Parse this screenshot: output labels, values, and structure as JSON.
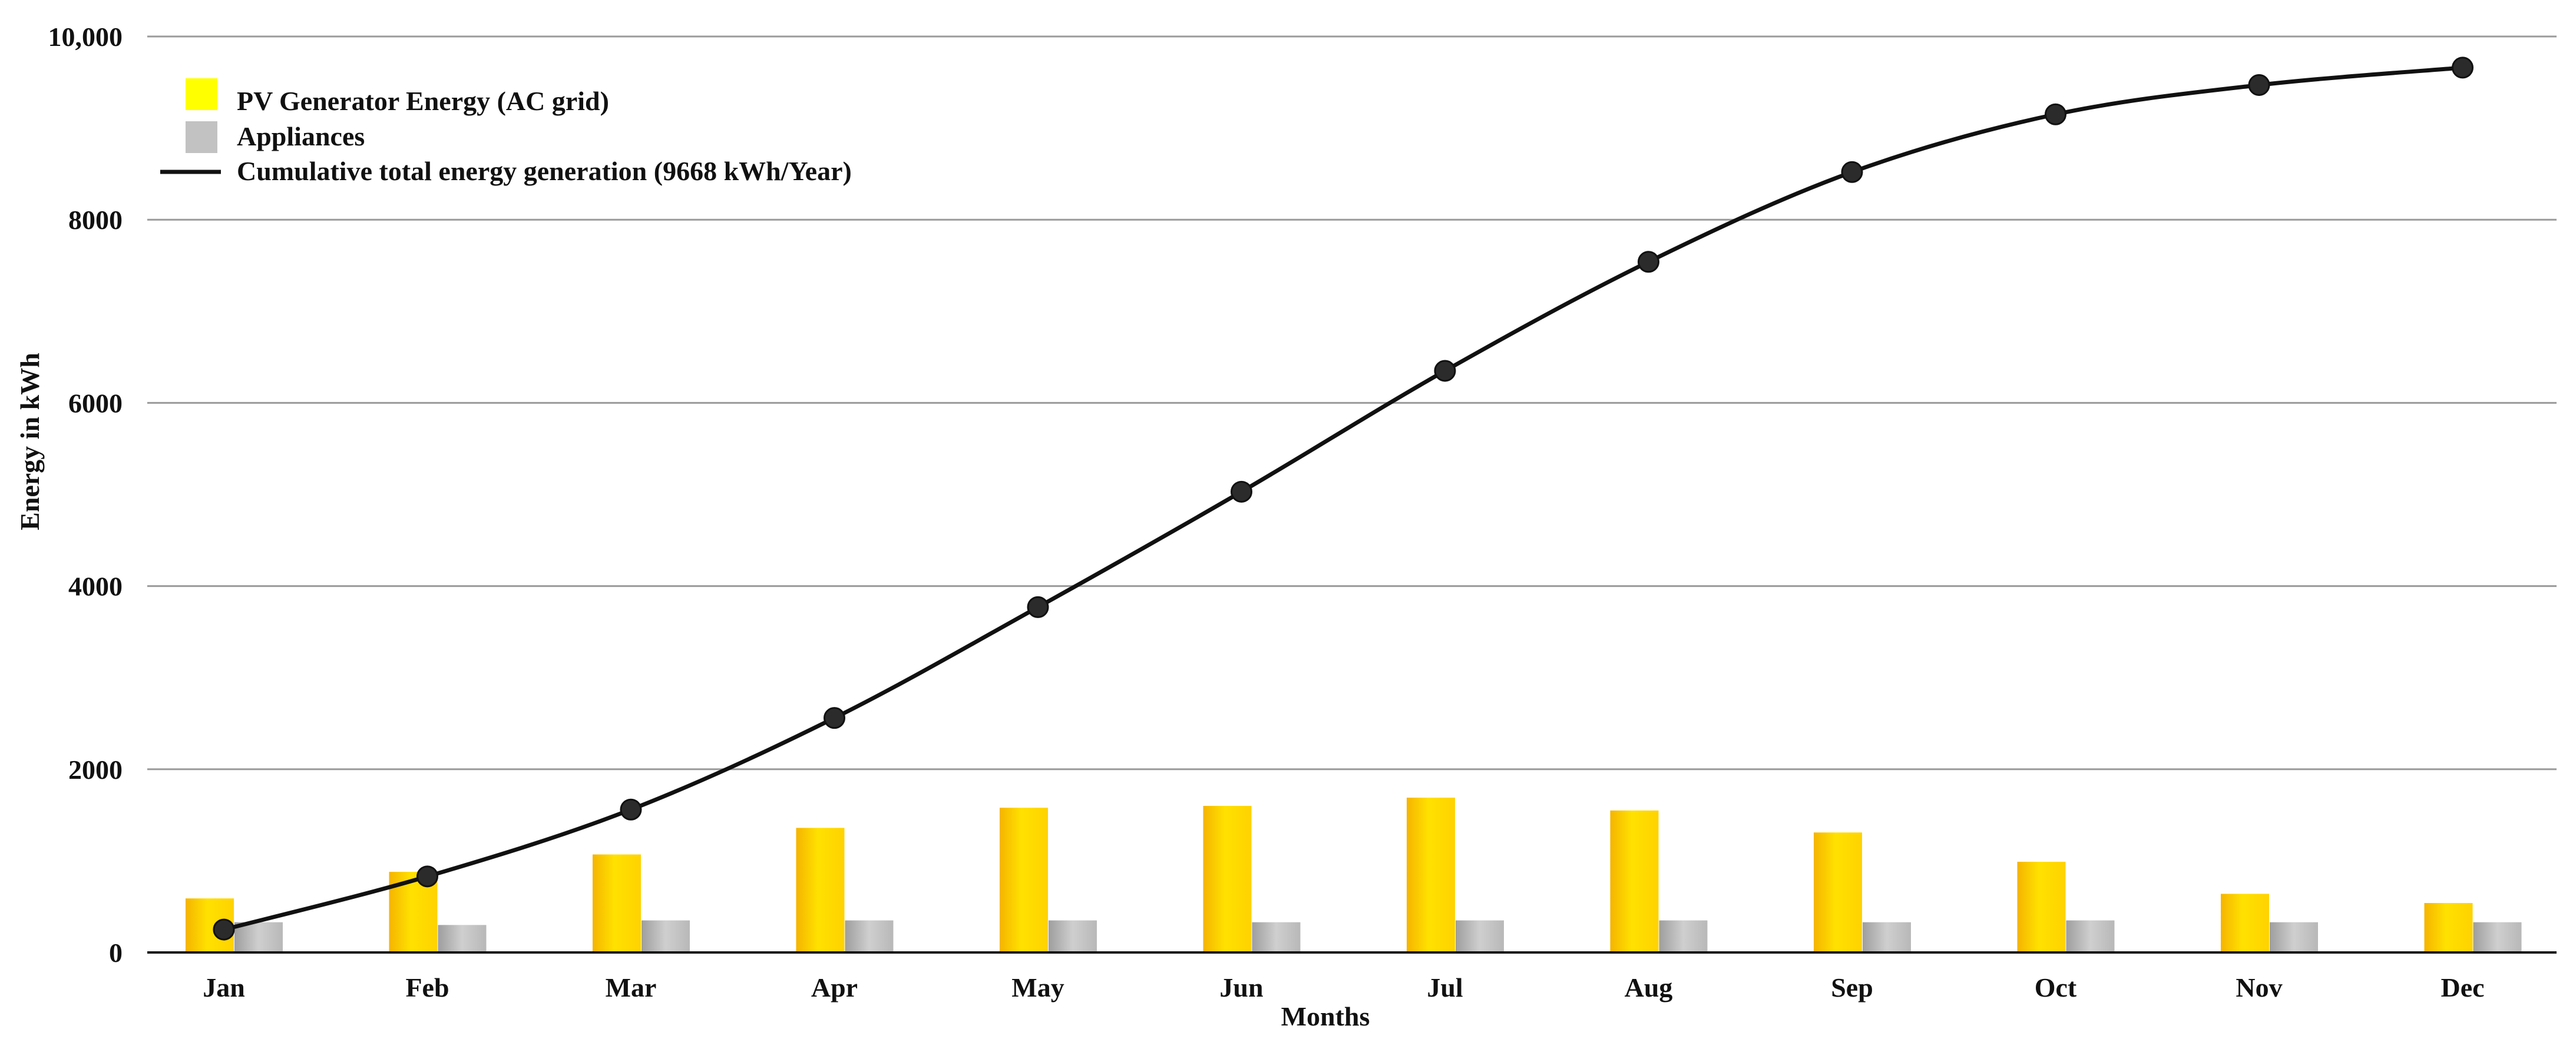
{
  "chart_data": {
    "type": "bar",
    "title": "",
    "xlabel": "Months",
    "ylabel": "Energy in kWh",
    "ylim": [
      0,
      10000
    ],
    "yticks": [
      {
        "value": 0,
        "label": "0"
      },
      {
        "value": 2000,
        "label": "2000"
      },
      {
        "value": 4000,
        "label": "4000"
      },
      {
        "value": 6000,
        "label": "6000"
      },
      {
        "value": 8000,
        "label": "8000"
      },
      {
        "value": 10000,
        "label": "10,000"
      }
    ],
    "grid": true,
    "legend_position": "top-left",
    "categories": [
      "Jan",
      "Feb",
      "Mar",
      "Apr",
      "May",
      "Jun",
      "Jul",
      "Aug",
      "Sep",
      "Oct",
      "Nov",
      "Dec"
    ],
    "series": [
      {
        "name": "PV Generator Energy (AC grid)",
        "type": "bar",
        "color": "#ffd800",
        "values": [
          590,
          880,
          1070,
          1360,
          1580,
          1600,
          1690,
          1550,
          1310,
          990,
          640,
          540
        ]
      },
      {
        "name": "Appliances",
        "type": "bar",
        "color": "#bdbdbd",
        "values": [
          330,
          300,
          350,
          350,
          350,
          330,
          350,
          350,
          330,
          350,
          330,
          330
        ]
      },
      {
        "name": "Cumulative total energy generation (9668 kWh/Year)",
        "type": "line",
        "color": "#111111",
        "values": [
          250,
          830,
          1560,
          2560,
          3770,
          5030,
          6350,
          7540,
          8520,
          9150,
          9470,
          9660
        ]
      }
    ]
  }
}
